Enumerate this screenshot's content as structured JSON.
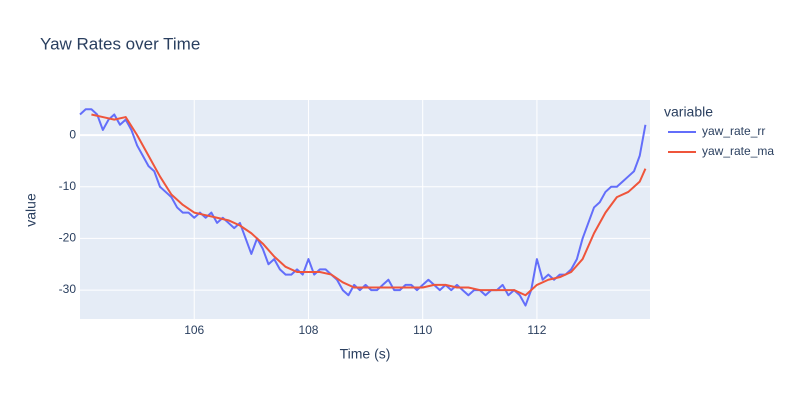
{
  "chart_data": {
    "type": "line",
    "title": "Yaw Rates over Time",
    "x_label": "Time (s)",
    "y_label": "value",
    "legend_title": "variable",
    "legend_position": "right",
    "xlim": [
      104.0,
      113.98
    ],
    "ylim": [
      -35.6,
      6.8
    ],
    "xticks": [
      106,
      108,
      110,
      112
    ],
    "yticks": [
      0,
      -10,
      -20,
      -30
    ],
    "grid": true,
    "series": [
      {
        "name": "yaw_rate_rr",
        "color": "#636efa",
        "x": [
          104.0,
          104.1,
          104.2,
          104.3,
          104.4,
          104.5,
          104.6,
          104.7,
          104.8,
          104.9,
          105.0,
          105.1,
          105.2,
          105.3,
          105.4,
          105.5,
          105.6,
          105.7,
          105.8,
          105.9,
          106.0,
          106.1,
          106.2,
          106.3,
          106.4,
          106.5,
          106.6,
          106.7,
          106.8,
          106.9,
          107.0,
          107.1,
          107.2,
          107.3,
          107.4,
          107.5,
          107.6,
          107.7,
          107.8,
          107.9,
          108.0,
          108.1,
          108.2,
          108.3,
          108.4,
          108.5,
          108.6,
          108.7,
          108.8,
          108.9,
          109.0,
          109.1,
          109.2,
          109.3,
          109.4,
          109.5,
          109.6,
          109.7,
          109.8,
          109.9,
          110.0,
          110.1,
          110.2,
          110.3,
          110.4,
          110.5,
          110.6,
          110.7,
          110.8,
          110.9,
          111.0,
          111.1,
          111.2,
          111.3,
          111.4,
          111.5,
          111.6,
          111.7,
          111.8,
          111.9,
          112.0,
          112.1,
          112.2,
          112.3,
          112.4,
          112.5,
          112.6,
          112.7,
          112.8,
          112.9,
          113.0,
          113.1,
          113.2,
          113.3,
          113.4,
          113.5,
          113.6,
          113.7,
          113.8,
          113.9
        ],
        "values": [
          4,
          5,
          5,
          4,
          1,
          3,
          4,
          2,
          3,
          1,
          -2,
          -4,
          -6,
          -7,
          -10,
          -11,
          -12,
          -14,
          -15,
          -15,
          -16,
          -15,
          -16,
          -15,
          -17,
          -16,
          -17,
          -18,
          -17,
          -20,
          -23,
          -20,
          -22,
          -25,
          -24,
          -26,
          -27,
          -27,
          -26,
          -27,
          -24,
          -27,
          -26,
          -26,
          -27,
          -28,
          -30,
          -31,
          -29,
          -30,
          -29,
          -30,
          -30,
          -29,
          -28,
          -30,
          -30,
          -29,
          -29,
          -30,
          -29,
          -28,
          -29,
          -30,
          -29,
          -30,
          -29,
          -30,
          -31,
          -30,
          -30,
          -31,
          -30,
          -30,
          -29,
          -31,
          -30,
          -31,
          -33,
          -30,
          -24,
          -28,
          -27,
          -28,
          -27,
          -27,
          -26,
          -24,
          -20,
          -17,
          -14,
          -13,
          -11,
          -10,
          -10,
          -9,
          -8,
          -7,
          -4,
          2
        ]
      },
      {
        "name": "yaw_rate_ma",
        "color": "#ef553b",
        "x": [
          104.2,
          104.4,
          104.6,
          104.8,
          105.0,
          105.2,
          105.4,
          105.6,
          105.8,
          106.0,
          106.2,
          106.4,
          106.6,
          106.8,
          107.0,
          107.2,
          107.4,
          107.6,
          107.8,
          108.0,
          108.2,
          108.4,
          108.6,
          108.8,
          109.0,
          109.2,
          109.4,
          109.6,
          109.8,
          110.0,
          110.2,
          110.4,
          110.6,
          110.8,
          111.0,
          111.2,
          111.4,
          111.6,
          111.8,
          112.0,
          112.2,
          112.4,
          112.6,
          112.8,
          113.0,
          113.2,
          113.4,
          113.6,
          113.8,
          113.9
        ],
        "values": [
          4,
          3.5,
          3,
          3.5,
          0,
          -4,
          -8,
          -11.5,
          -13.5,
          -15,
          -15.5,
          -16,
          -16.5,
          -17.5,
          -19,
          -21,
          -23.5,
          -25.5,
          -26.5,
          -26.5,
          -26.5,
          -27,
          -28.5,
          -29.5,
          -29.5,
          -29.5,
          -29.5,
          -29.5,
          -29.5,
          -29.5,
          -29,
          -29,
          -29.5,
          -29.5,
          -30,
          -30,
          -30,
          -30,
          -31,
          -29,
          -28,
          -27.5,
          -26.5,
          -24,
          -19,
          -15,
          -12,
          -11,
          -9,
          -6.5
        ]
      }
    ]
  }
}
